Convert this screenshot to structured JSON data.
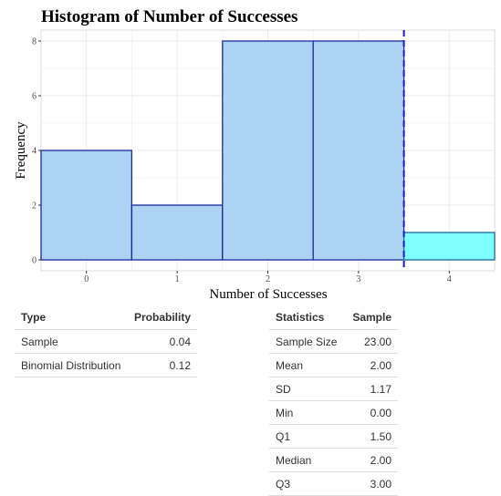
{
  "chart_data": {
    "type": "bar",
    "title": "Histogram of Number of Successes",
    "xlabel": "Number of Successes",
    "ylabel": "Frequency",
    "categories": [
      "0",
      "1",
      "2",
      "3",
      "4"
    ],
    "values": [
      4,
      2,
      8,
      8,
      1
    ],
    "xticks": [
      "0",
      "1",
      "2",
      "3",
      "4"
    ],
    "yticks": [
      "0",
      "2",
      "4",
      "6",
      "8"
    ],
    "xlim": [
      -0.5,
      4.5
    ],
    "ylim": [
      0,
      8
    ],
    "highlighted_categories": [
      "4"
    ],
    "reference_line_x": 3.5,
    "grid": true,
    "colors": {
      "bar_fill": "#aed4f5",
      "bar_stroke": "#1a2a99",
      "highlight_fill": "#80ffff",
      "highlight_stroke": "#1a6699",
      "reference_line": "#1a1acc",
      "grid": "#ebebeb"
    }
  },
  "probability_table": {
    "headers": [
      "Type",
      "Probability"
    ],
    "rows": [
      [
        "Sample",
        "0.04"
      ],
      [
        "Binomial Distribution",
        "0.12"
      ]
    ]
  },
  "statistics_table": {
    "headers": [
      "Statistics",
      "Sample"
    ],
    "rows": [
      [
        "Sample Size",
        "23.00"
      ],
      [
        "Mean",
        "2.00"
      ],
      [
        "SD",
        "1.17"
      ],
      [
        "Min",
        "0.00"
      ],
      [
        "Q1",
        "1.50"
      ],
      [
        "Median",
        "2.00"
      ],
      [
        "Q3",
        "3.00"
      ]
    ]
  }
}
